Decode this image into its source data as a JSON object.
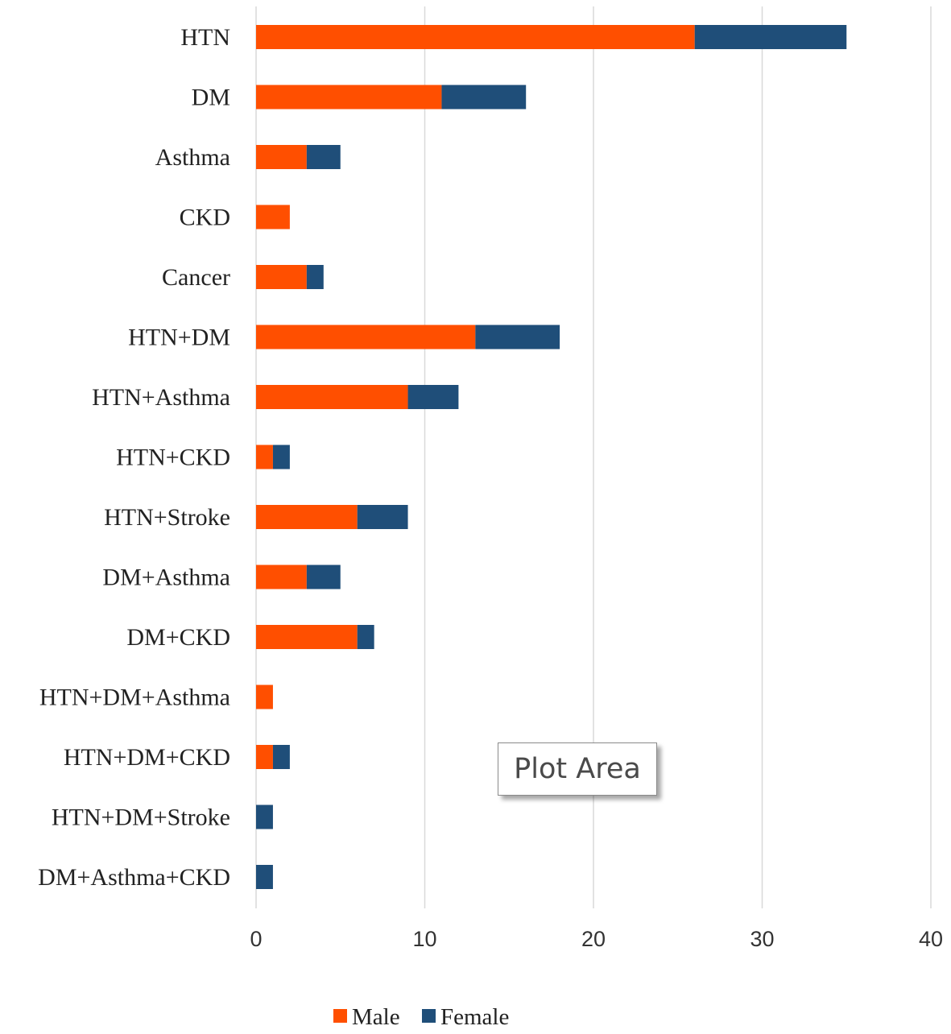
{
  "chart_data": {
    "type": "bar",
    "orientation": "horizontal",
    "stacked": true,
    "categories": [
      "HTN",
      "DM",
      "Asthma",
      "CKD",
      "Cancer",
      "HTN+DM",
      "HTN+Asthma",
      "HTN+CKD",
      "HTN+Stroke",
      "DM+Asthma",
      "DM+CKD",
      "HTN+DM+Asthma",
      "HTN+DM+CKD",
      "HTN+DM+Stroke",
      "DM+Asthma+CKD"
    ],
    "series": [
      {
        "name": "Male",
        "color": "#ff4f00",
        "values": [
          26,
          11,
          3,
          2,
          3,
          13,
          9,
          1,
          6,
          3,
          6,
          1,
          1,
          0,
          0
        ]
      },
      {
        "name": "Female",
        "color": "#1f4e79",
        "values": [
          9,
          5,
          2,
          0,
          1,
          5,
          3,
          1,
          3,
          2,
          1,
          0,
          1,
          1,
          1
        ]
      }
    ],
    "xlim": [
      0,
      40
    ],
    "xticks": [
      "0",
      "10",
      "20",
      "30",
      "40"
    ],
    "grid": "vertical",
    "legend_position": "bottom",
    "title": "",
    "xlabel": "",
    "ylabel": ""
  },
  "tooltip": {
    "text": "Plot Area"
  }
}
